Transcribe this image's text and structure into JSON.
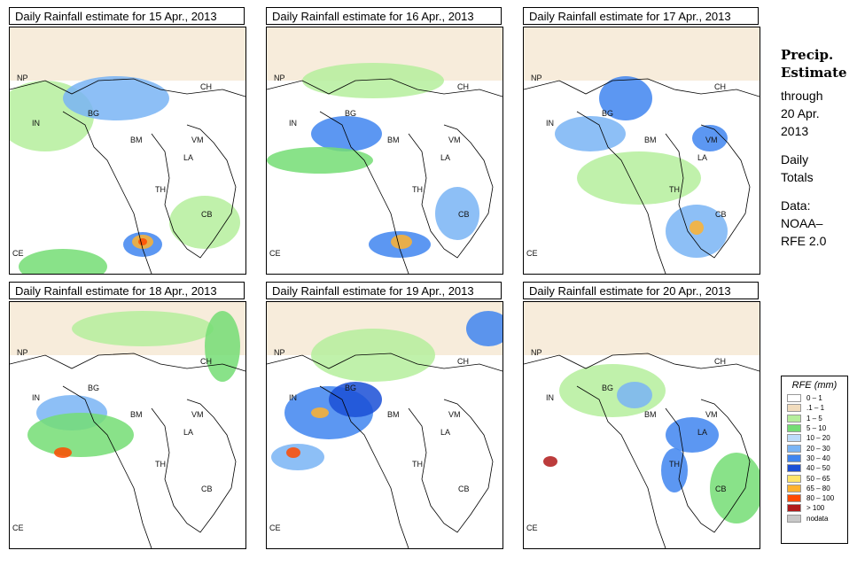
{
  "panels": [
    {
      "title": "Daily Rainfall estimate for  15 Apr., 2013"
    },
    {
      "title": "Daily Rainfall estimate for  16 Apr., 2013"
    },
    {
      "title": "Daily Rainfall estimate for  17 Apr., 2013"
    },
    {
      "title": "Daily Rainfall estimate for  18 Apr., 2013"
    },
    {
      "title": "Daily Rainfall estimate for  19 Apr., 2013"
    },
    {
      "title": "Daily Rainfall estimate for  20 Apr., 2013"
    }
  ],
  "country_labels": {
    "np": "NP",
    "ch": "CH",
    "in": "IN",
    "bg": "BG",
    "bm": "BM",
    "vm": "VM",
    "la": "LA",
    "th": "TH",
    "cb": "CB",
    "ce": "CE"
  },
  "info": {
    "title_line1": "Precip.",
    "title_line2": "Estimate",
    "through": "through",
    "date_line1": "20 Apr.",
    "date_line2": "2013",
    "daily_line1": "Daily",
    "daily_line2": "Totals",
    "data_line1": "Data:",
    "data_line2": "NOAA–",
    "data_line3": "RFE 2.0"
  },
  "legend": {
    "title": "RFE (mm)",
    "items": [
      {
        "label": "0 – 1",
        "color": "#ffffff"
      },
      {
        "label": ".1 – 1",
        "color": "#f1dcbd"
      },
      {
        "label": "1 – 5",
        "color": "#b5ee9c"
      },
      {
        "label": "5 – 10",
        "color": "#74dd74"
      },
      {
        "label": "10 – 20",
        "color": "#bcdcfa"
      },
      {
        "label": "20 – 30",
        "color": "#79b4f5"
      },
      {
        "label": "30 – 40",
        "color": "#3f85f0"
      },
      {
        "label": "40 – 50",
        "color": "#1a4fd6"
      },
      {
        "label": "50 – 65",
        "color": "#ffe56a"
      },
      {
        "label": "65 – 80",
        "color": "#ffb22e"
      },
      {
        "label": "80 – 100",
        "color": "#ff4a00"
      },
      {
        "label": "> 100",
        "color": "#b01a1a"
      },
      {
        "label": "nodata",
        "color": "#c8c8c8"
      }
    ]
  }
}
